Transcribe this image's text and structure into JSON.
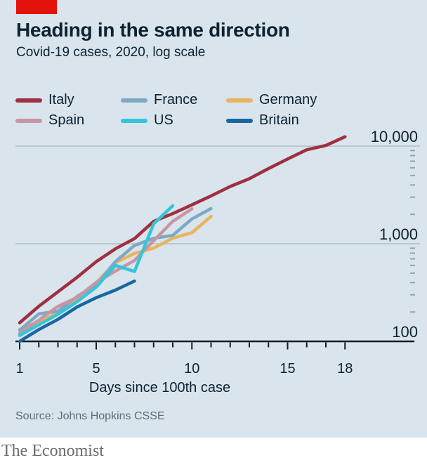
{
  "footer": {
    "source": "Source: Johns Hopkins CSSE",
    "brand": "The Economist"
  },
  "chart_data": {
    "type": "line",
    "title": "Heading in the same direction",
    "subtitle": "Covid-19 cases, 2020, log scale",
    "xlabel": "Days since 100th case",
    "x_axis_days": [
      1,
      18
    ],
    "x_ticks": [
      1,
      5,
      10,
      15,
      18
    ],
    "y_scale": "log",
    "y_ticks": [
      {
        "label": "10,000",
        "value": 10000
      },
      {
        "label": "1,000",
        "value": 1000
      },
      {
        "label": "100",
        "value": 100
      }
    ],
    "grid": "horizontal-major",
    "legend_position": "top",
    "legend_order": [
      "Italy",
      "Spain",
      "France",
      "US",
      "Germany",
      "Britain"
    ],
    "draw_order": [
      "Germany",
      "France",
      "Spain",
      "Italy",
      "US",
      "Britain"
    ],
    "series": [
      {
        "name": "Italy",
        "color": "#9e3041",
        "values": [
          155,
          229,
          322,
          453,
          655,
          888,
          1128,
          1694,
          2036,
          2502,
          3089,
          3858,
          4636,
          5883,
          7375,
          9172,
          10149,
          12462
        ]
      },
      {
        "name": "Spain",
        "color": "#c795a4",
        "values": [
          120,
          165,
          228,
          282,
          401,
          525,
          674,
          1073,
          1695,
          2277
        ]
      },
      {
        "name": "France",
        "color": "#7ea8c4",
        "values": [
          130,
          191,
          204,
          288,
          380,
          656,
          959,
          1136,
          1219,
          1794,
          2293
        ]
      },
      {
        "name": "US",
        "color": "#35c5d9",
        "values": [
          115,
          148,
          190,
          255,
          360,
          600,
          520,
          1600,
          2450
        ]
      },
      {
        "name": "Germany",
        "color": "#e9b45f",
        "values": [
          132,
          159,
          196,
          262,
          400,
          639,
          795,
          902,
          1139,
          1296,
          1908
        ]
      },
      {
        "name": "Britain",
        "color": "#1a67a0",
        "values": [
          100,
          132,
          168,
          225,
          280,
          335,
          415
        ]
      }
    ],
    "colors": {
      "background": "#d9e4ec",
      "brand_red": "#e3120b",
      "text": "#0e2230",
      "gridline": "#aebfc7",
      "axis": "#141c22",
      "minor_tick": "#94a5ae"
    }
  }
}
